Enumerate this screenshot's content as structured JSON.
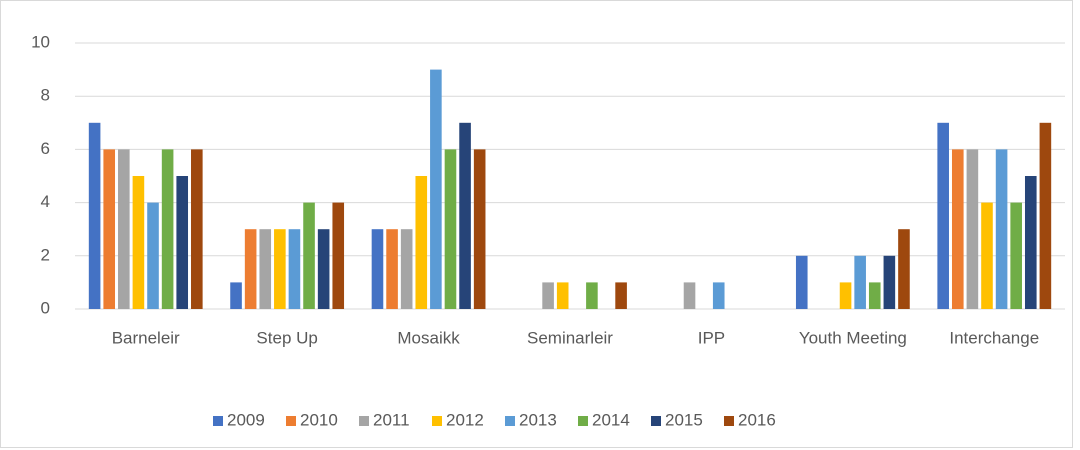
{
  "chart_data": {
    "type": "bar",
    "categories": [
      "Barneleir",
      "Step Up",
      "Mosaikk",
      "Seminarleir",
      "IPP",
      "Youth Meeting",
      "Interchange"
    ],
    "series": [
      {
        "name": "2009",
        "color": "#4472c4",
        "values": [
          7,
          1,
          3,
          0,
          0,
          2,
          7
        ]
      },
      {
        "name": "2010",
        "color": "#ed7d31",
        "values": [
          6,
          3,
          3,
          0,
          0,
          0,
          6
        ]
      },
      {
        "name": "2011",
        "color": "#a5a5a5",
        "values": [
          6,
          3,
          3,
          1,
          1,
          0,
          6
        ]
      },
      {
        "name": "2012",
        "color": "#ffc000",
        "values": [
          5,
          3,
          5,
          1,
          0,
          1,
          4
        ]
      },
      {
        "name": "2013",
        "color": "#5b9bd5",
        "values": [
          4,
          3,
          9,
          0,
          1,
          2,
          6
        ]
      },
      {
        "name": "2014",
        "color": "#70ad47",
        "values": [
          6,
          4,
          6,
          1,
          0,
          1,
          4
        ]
      },
      {
        "name": "2015",
        "color": "#264478",
        "values": [
          5,
          3,
          7,
          0,
          0,
          2,
          5
        ]
      },
      {
        "name": "2016",
        "color": "#9e480e",
        "values": [
          6,
          4,
          6,
          1,
          0,
          3,
          7
        ]
      }
    ],
    "ylim": [
      0,
      10
    ],
    "yticks": [
      0,
      2,
      4,
      6,
      8,
      10
    ],
    "grid": true,
    "legend": "bottom"
  }
}
